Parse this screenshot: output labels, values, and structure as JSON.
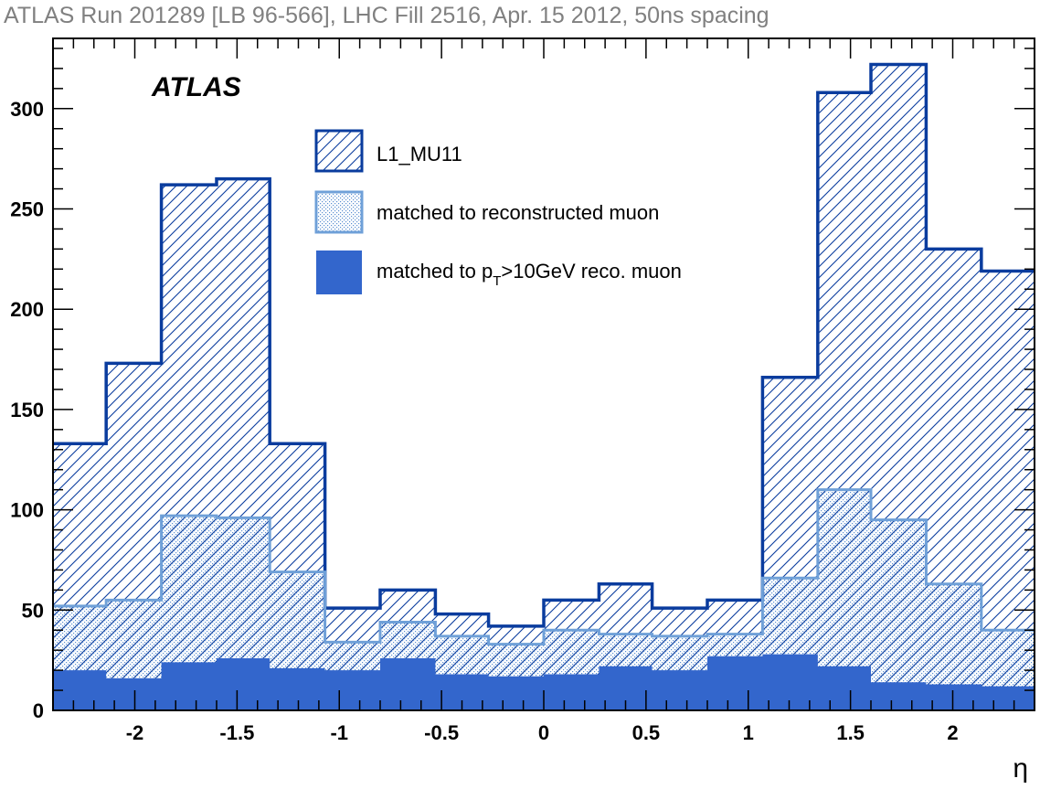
{
  "chart_data": {
    "type": "histogram",
    "title": "ATLAS Run 201289 [LB 96-566], LHC Fill 2516, Apr. 15 2012, 50ns spacing",
    "watermark": "ATLAS",
    "xlabel": "η",
    "ylabel": "",
    "xlim": [
      -2.4,
      2.4
    ],
    "ylim": [
      0,
      335
    ],
    "x_ticks": [
      -2,
      -1.5,
      -1,
      -0.5,
      0,
      0.5,
      1,
      1.5,
      2
    ],
    "x_tick_labels": [
      "-2",
      "-1.5",
      "-1",
      "-0.5",
      "0",
      "0.5",
      "1",
      "1.5",
      "2"
    ],
    "y_ticks": [
      0,
      50,
      100,
      150,
      200,
      250,
      300
    ],
    "y_tick_labels": [
      "0",
      "50",
      "100",
      "150",
      "200",
      "250",
      "300"
    ],
    "grid": false,
    "legend_position": "top-center",
    "bin_edges": [
      -2.4,
      -2.14,
      -1.87,
      -1.6,
      -1.34,
      -1.07,
      -0.8,
      -0.53,
      -0.27,
      0.0,
      0.27,
      0.53,
      0.8,
      1.07,
      1.34,
      1.6,
      1.87,
      2.14,
      2.4
    ],
    "series": [
      {
        "name": "L1_MU11",
        "style": "hatched",
        "color": "#0a3c9e",
        "values": [
          133,
          173,
          262,
          265,
          133,
          51,
          60,
          48,
          42,
          55,
          63,
          51,
          55,
          166,
          308,
          322,
          230,
          219
        ]
      },
      {
        "name": "matched to reconstructed muon",
        "style": "dotted",
        "color": "#6fa0d8",
        "values": [
          52,
          55,
          97,
          96,
          69,
          34,
          44,
          37,
          33,
          40,
          38,
          37,
          38,
          66,
          110,
          95,
          63,
          40
        ]
      },
      {
        "name": "matched to p_T>10GeV reco. muon",
        "legend_label_main": "matched to p",
        "legend_label_sub": "T",
        "legend_label_rest": ">10GeV reco. muon",
        "style": "solid",
        "color": "#3366cc",
        "values": [
          20,
          16,
          24,
          26,
          21,
          20,
          26,
          18,
          17,
          18,
          22,
          20,
          27,
          28,
          22,
          14,
          13,
          12
        ]
      }
    ]
  }
}
